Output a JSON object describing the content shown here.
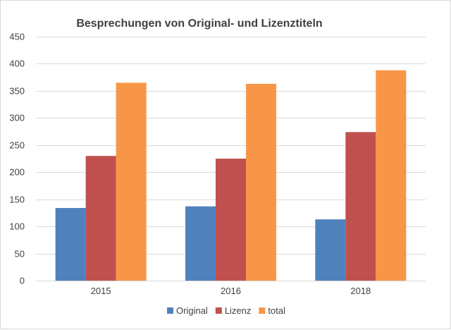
{
  "chart_data": {
    "type": "bar",
    "title": "Besprechungen von Original- und Lizenztiteln",
    "categories": [
      "2015",
      "2016",
      "2018"
    ],
    "series": [
      {
        "name": "Original",
        "color": "#4f81bd",
        "values": [
          134,
          137,
          113
        ]
      },
      {
        "name": "Lizenz",
        "color": "#c0504d",
        "values": [
          230,
          225,
          274
        ]
      },
      {
        "name": "total",
        "color": "#f79646",
        "values": [
          365,
          363,
          388
        ]
      }
    ],
    "xlabel": "",
    "ylabel": "",
    "ylim": [
      0,
      450
    ],
    "yticks": [
      "0",
      "50",
      "100",
      "150",
      "200",
      "250",
      "300",
      "350",
      "400",
      "450"
    ],
    "grid": true,
    "legend_position": "bottom",
    "gridline_color": "#d9d9d9"
  }
}
